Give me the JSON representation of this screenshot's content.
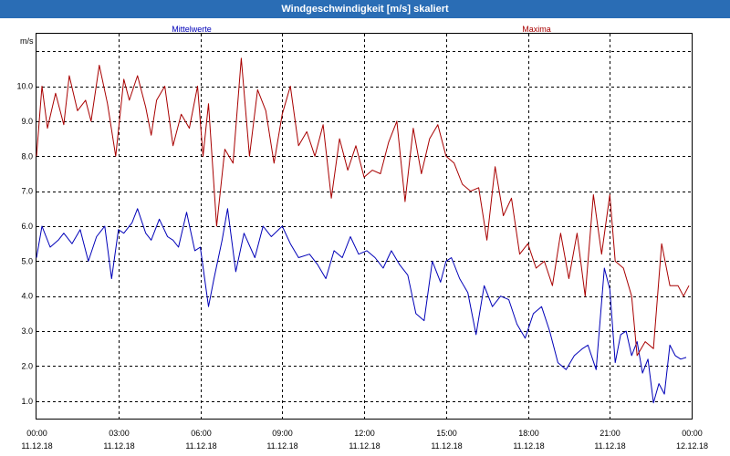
{
  "window": {
    "title": "Windgeschwindigkeit [m/s] skaliert"
  },
  "colors": {
    "title_bg": "#2a6db5",
    "mean": "#0000b8",
    "max": "#a80000",
    "grid": "#000000"
  },
  "chart_data": {
    "type": "line",
    "title": "Windgeschwindigkeit [m/s] skaliert",
    "ylabel": "m/s",
    "ylim": [
      0.5,
      11.5
    ],
    "yticks": [
      "1.0",
      "2.0",
      "3.0",
      "4.0",
      "5.0",
      "6.0",
      "7.0",
      "8.0",
      "9.0",
      "10.0"
    ],
    "xlim_hours": [
      0,
      24
    ],
    "xticks": [
      {
        "time": "00:00",
        "date": "11.12.18"
      },
      {
        "time": "03:00",
        "date": "11.12.18"
      },
      {
        "time": "06:00",
        "date": "11.12.18"
      },
      {
        "time": "09:00",
        "date": "11.12.18"
      },
      {
        "time": "12:00",
        "date": "11.12.18"
      },
      {
        "time": "15:00",
        "date": "11.12.18"
      },
      {
        "time": "18:00",
        "date": "11.12.18"
      },
      {
        "time": "21:00",
        "date": "11.12.18"
      },
      {
        "time": "00:00",
        "date": "12.12.18"
      }
    ],
    "grid": true,
    "series": [
      {
        "name": "Mittelwerte",
        "color": "#0000b8",
        "x": [
          0,
          0.2,
          0.5,
          0.8,
          1.0,
          1.3,
          1.6,
          1.9,
          2.2,
          2.5,
          2.75,
          3.0,
          3.2,
          3.5,
          3.7,
          4.0,
          4.2,
          4.5,
          4.8,
          5.0,
          5.2,
          5.5,
          5.8,
          6.0,
          6.3,
          6.5,
          6.8,
          7.0,
          7.3,
          7.6,
          8.0,
          8.3,
          8.6,
          9.0,
          9.3,
          9.6,
          10.0,
          10.3,
          10.6,
          10.9,
          11.2,
          11.5,
          11.8,
          12.1,
          12.4,
          12.7,
          13.0,
          13.3,
          13.6,
          13.9,
          14.2,
          14.5,
          14.8,
          15.0,
          15.2,
          15.5,
          15.8,
          16.1,
          16.4,
          16.7,
          17.0,
          17.3,
          17.6,
          17.9,
          18.2,
          18.5,
          18.8,
          19.1,
          19.4,
          19.7,
          20.0,
          20.2,
          20.5,
          20.8,
          21.0,
          21.2,
          21.4,
          21.6,
          21.8,
          22.0,
          22.2,
          22.4,
          22.6,
          22.8,
          23.0,
          23.2,
          23.4,
          23.6,
          23.8
        ],
        "values": [
          5.1,
          6.0,
          5.4,
          5.6,
          5.8,
          5.5,
          5.9,
          5.0,
          5.7,
          6.0,
          4.5,
          5.9,
          5.8,
          6.1,
          6.5,
          5.8,
          5.6,
          6.2,
          5.7,
          5.6,
          5.4,
          6.4,
          5.3,
          5.4,
          3.7,
          4.5,
          5.6,
          6.5,
          4.7,
          5.8,
          5.1,
          6.0,
          5.7,
          6.0,
          5.5,
          5.1,
          5.2,
          4.9,
          4.5,
          5.3,
          5.1,
          5.7,
          5.2,
          5.3,
          5.1,
          4.8,
          5.3,
          4.9,
          4.6,
          3.5,
          3.3,
          5.0,
          4.4,
          5.0,
          5.1,
          4.5,
          4.1,
          2.9,
          4.3,
          3.7,
          4.0,
          3.9,
          3.2,
          2.8,
          3.5,
          3.7,
          3.0,
          2.1,
          1.9,
          2.3,
          2.5,
          2.6,
          1.9,
          4.8,
          4.2,
          2.1,
          2.9,
          3.0,
          2.3,
          2.7,
          1.8,
          2.2,
          0.95,
          1.5,
          1.2,
          2.6,
          2.3,
          2.2,
          2.25
        ]
      },
      {
        "name": "Maxima",
        "color": "#a80000",
        "x": [
          0,
          0.2,
          0.4,
          0.7,
          1.0,
          1.2,
          1.5,
          1.8,
          2.0,
          2.3,
          2.6,
          2.9,
          3.2,
          3.4,
          3.7,
          4.0,
          4.2,
          4.4,
          4.7,
          5.0,
          5.3,
          5.6,
          5.9,
          6.1,
          6.3,
          6.6,
          6.9,
          7.2,
          7.5,
          7.8,
          8.1,
          8.4,
          8.7,
          9.0,
          9.3,
          9.6,
          9.9,
          10.2,
          10.5,
          10.8,
          11.1,
          11.4,
          11.7,
          12.0,
          12.3,
          12.6,
          12.9,
          13.2,
          13.5,
          13.8,
          14.1,
          14.4,
          14.7,
          15.0,
          15.3,
          15.6,
          15.9,
          16.2,
          16.5,
          16.8,
          17.1,
          17.4,
          17.7,
          18.0,
          18.3,
          18.6,
          18.9,
          19.2,
          19.5,
          19.8,
          20.1,
          20.4,
          20.7,
          21.0,
          21.2,
          21.5,
          21.8,
          22.0,
          22.3,
          22.6,
          22.9,
          23.2,
          23.5,
          23.7,
          23.9
        ],
        "values": [
          8.0,
          10.0,
          8.8,
          9.8,
          8.9,
          10.3,
          9.3,
          9.6,
          9.0,
          10.6,
          9.5,
          8.0,
          10.2,
          9.6,
          10.3,
          9.4,
          8.6,
          9.6,
          10.0,
          8.3,
          9.2,
          8.8,
          10.0,
          8.0,
          9.5,
          6.0,
          8.2,
          7.8,
          10.8,
          8.0,
          9.9,
          9.3,
          7.8,
          9.2,
          10.0,
          8.3,
          8.7,
          8.0,
          8.9,
          6.8,
          8.5,
          7.6,
          8.3,
          7.4,
          7.6,
          7.5,
          8.4,
          9.0,
          6.7,
          8.8,
          7.5,
          8.5,
          8.9,
          8.0,
          7.8,
          7.2,
          7.0,
          7.1,
          5.6,
          7.7,
          6.3,
          6.8,
          5.2,
          5.5,
          4.8,
          5.0,
          4.3,
          5.8,
          4.5,
          5.8,
          4.0,
          6.9,
          5.2,
          6.9,
          5.0,
          4.8,
          4.0,
          2.3,
          2.7,
          2.5,
          5.5,
          4.3,
          4.3,
          4.0,
          4.3
        ]
      }
    ],
    "legend": [
      {
        "name": "Mittelwerte",
        "color": "#0000b8",
        "position": "top-left"
      },
      {
        "name": "Maxima",
        "color": "#a80000",
        "position": "top-right"
      }
    ]
  }
}
